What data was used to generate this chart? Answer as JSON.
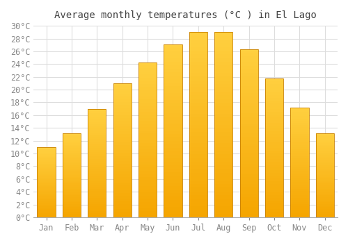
{
  "title": "Average monthly temperatures (°C ) in El Lago",
  "months": [
    "Jan",
    "Feb",
    "Mar",
    "Apr",
    "May",
    "Jun",
    "Jul",
    "Aug",
    "Sep",
    "Oct",
    "Nov",
    "Dec"
  ],
  "values": [
    11.0,
    13.2,
    17.0,
    21.0,
    24.3,
    27.1,
    29.0,
    29.0,
    26.3,
    21.8,
    17.2,
    13.2
  ],
  "bar_color_bottom": "#F5A500",
  "bar_color_top": "#FFD040",
  "bar_edge_color": "#C88000",
  "ylim": [
    0,
    30
  ],
  "ytick_step": 2,
  "background_color": "#ffffff",
  "plot_bg_color": "#ffffff",
  "grid_color": "#dddddd",
  "title_fontsize": 10,
  "tick_fontsize": 8.5,
  "title_color": "#444444",
  "tick_color": "#888888"
}
